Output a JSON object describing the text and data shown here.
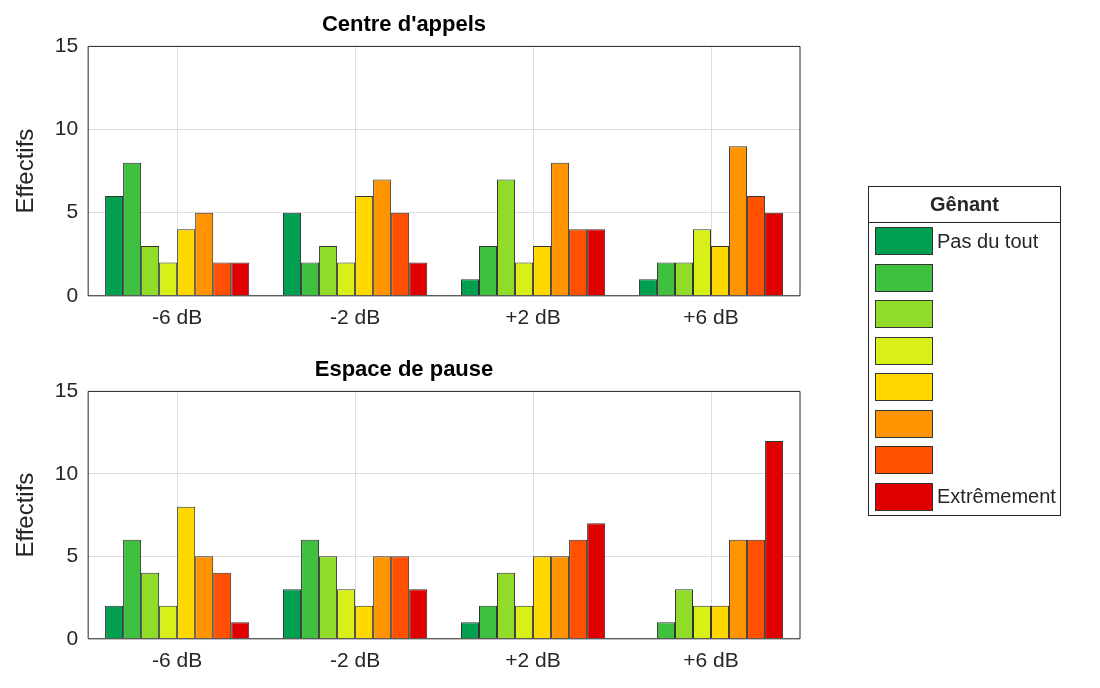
{
  "chart_data": [
    {
      "type": "bar",
      "title": "Centre d'appels",
      "ylabel": "Effectifs",
      "categories": [
        "-6 dB",
        "-2 dB",
        "+2 dB",
        "+6 dB"
      ],
      "ylim": [
        0,
        15
      ],
      "yticks": [
        0,
        5,
        10,
        15
      ],
      "grid": true,
      "legend": "right",
      "legend_title": "Gênant",
      "series": [
        {
          "name": "Pas du tout",
          "color": "#00a050",
          "values": [
            6,
            5,
            1,
            1
          ]
        },
        {
          "color": "#40c040",
          "values": [
            8,
            2,
            3,
            2
          ]
        },
        {
          "color": "#90dc28",
          "values": [
            3,
            3,
            7,
            2
          ]
        },
        {
          "color": "#d8f018",
          "values": [
            2,
            2,
            2,
            4
          ]
        },
        {
          "color": "#ffd800",
          "values": [
            4,
            6,
            3,
            3
          ]
        },
        {
          "color": "#ff9400",
          "values": [
            5,
            7,
            8,
            9
          ]
        },
        {
          "color": "#ff5000",
          "values": [
            2,
            5,
            4,
            6
          ]
        },
        {
          "name": "Extrêmement",
          "color": "#e00000",
          "values": [
            2,
            2,
            4,
            5
          ]
        }
      ]
    },
    {
      "type": "bar",
      "title": "Espace de pause",
      "ylabel": "Effectifs",
      "categories": [
        "-6 dB",
        "-2 dB",
        "+2 dB",
        "+6 dB"
      ],
      "ylim": [
        0,
        15
      ],
      "yticks": [
        0,
        5,
        10,
        15
      ],
      "grid": true,
      "series": [
        {
          "color": "#00a050",
          "values": [
            2,
            3,
            1,
            0
          ]
        },
        {
          "color": "#40c040",
          "values": [
            6,
            6,
            2,
            1
          ]
        },
        {
          "color": "#90dc28",
          "values": [
            4,
            5,
            4,
            3
          ]
        },
        {
          "color": "#d8f018",
          "values": [
            2,
            3,
            2,
            2
          ]
        },
        {
          "color": "#ffd800",
          "values": [
            8,
            2,
            5,
            2
          ]
        },
        {
          "color": "#ff9400",
          "values": [
            5,
            5,
            5,
            6
          ]
        },
        {
          "color": "#ff5000",
          "values": [
            4,
            5,
            6,
            6
          ]
        },
        {
          "color": "#e00000",
          "values": [
            1,
            3,
            7,
            12
          ]
        }
      ]
    }
  ]
}
